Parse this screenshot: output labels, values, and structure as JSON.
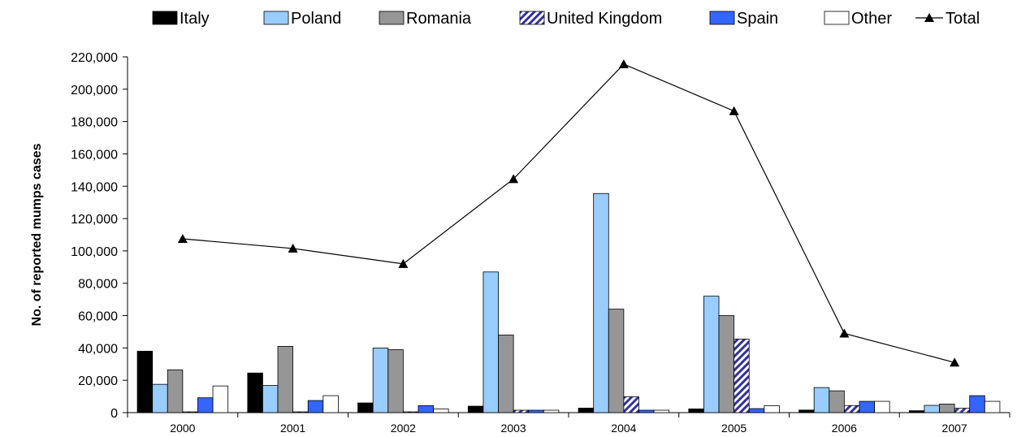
{
  "chart_data": {
    "type": "bar",
    "title": "",
    "xlabel": "",
    "ylabel": "No. of reported mumps cases",
    "ylim": [
      0,
      220000
    ],
    "y_ticks": [
      "0",
      "20,000",
      "40,000",
      "60,000",
      "80,000",
      "100,000",
      "120,000",
      "140,000",
      "160,000",
      "180,000",
      "200,000",
      "220,000"
    ],
    "y_tick_values": [
      0,
      20000,
      40000,
      60000,
      80000,
      100000,
      120000,
      140000,
      160000,
      180000,
      200000,
      220000
    ],
    "categories": [
      "2000",
      "2001",
      "2002",
      "2003",
      "2004",
      "2005",
      "2006",
      "2007"
    ],
    "legend_position": "top",
    "grid": false,
    "series": [
      {
        "name": "Italy",
        "kind": "bar",
        "color": "#000000",
        "pattern": "solid",
        "values": [
          38000,
          24500,
          6000,
          4000,
          2800,
          2300,
          1600,
          1200
        ]
      },
      {
        "name": "Poland",
        "kind": "bar",
        "color": "#99ccff",
        "pattern": "solid",
        "values": [
          17500,
          16800,
          40000,
          87000,
          135500,
          72000,
          15500,
          4500
        ]
      },
      {
        "name": "Romania",
        "kind": "bar",
        "color": "#969696",
        "pattern": "solid",
        "values": [
          26500,
          41000,
          39000,
          48000,
          64000,
          60000,
          13500,
          5300
        ]
      },
      {
        "name": "United Kingdom",
        "kind": "bar",
        "color": "#333399",
        "pattern": "hatch",
        "values": [
          500,
          500,
          500,
          1500,
          9800,
          45500,
          4400,
          2700
        ]
      },
      {
        "name": "Spain",
        "kind": "bar",
        "color": "#3366ff",
        "pattern": "solid",
        "values": [
          9200,
          7500,
          4300,
          1500,
          1500,
          2500,
          7000,
          10500
        ]
      },
      {
        "name": "Other",
        "kind": "bar",
        "color": "#ffffff",
        "pattern": "solid",
        "values": [
          16500,
          10500,
          2300,
          1500,
          1500,
          4300,
          7000,
          7000
        ]
      },
      {
        "name": "Total",
        "kind": "line",
        "color": "#000000",
        "marker": "triangle",
        "values": [
          107500,
          101500,
          92000,
          144500,
          215500,
          186500,
          49000,
          31000
        ]
      }
    ]
  }
}
